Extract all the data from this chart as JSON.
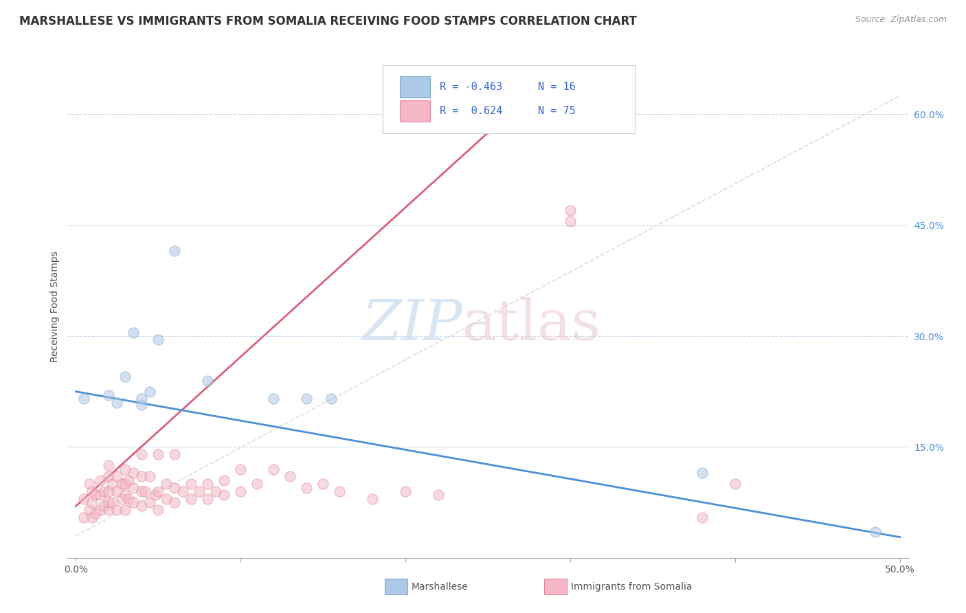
{
  "title": "MARSHALLESE VS IMMIGRANTS FROM SOMALIA RECEIVING FOOD STAMPS CORRELATION CHART",
  "source_text": "Source: ZipAtlas.com",
  "ylabel": "Receiving Food Stamps",
  "x_ticks": [
    0.0,
    0.1,
    0.2,
    0.3,
    0.4,
    0.5
  ],
  "x_tick_labels": [
    "0.0%",
    "",
    "",
    "",
    "",
    "50.0%"
  ],
  "y_ticks_right": [
    0.15,
    0.3,
    0.45,
    0.6
  ],
  "y_tick_labels_right": [
    "15.0%",
    "30.0%",
    "45.0%",
    "60.0%"
  ],
  "xlim": [
    -0.005,
    0.505
  ],
  "ylim": [
    0.0,
    0.68
  ],
  "blue_fill_color": "#aec8e8",
  "blue_edge_color": "#7aaad0",
  "pink_fill_color": "#f4b8c8",
  "pink_edge_color": "#e08898",
  "blue_line_color": "#4a90d9",
  "pink_line_color": "#d9607a",
  "grey_line_color": "#cccccc",
  "legend_r_blue": "R = -0.463",
  "legend_n_blue": "N = 16",
  "legend_r_pink": "R =  0.624",
  "legend_n_pink": "N = 75",
  "legend_label_blue": "Marshallese",
  "legend_label_pink": "Immigrants from Somalia",
  "blue_scatter_x": [
    0.005,
    0.02,
    0.025,
    0.03,
    0.035,
    0.04,
    0.04,
    0.045,
    0.05,
    0.06,
    0.08,
    0.12,
    0.14,
    0.155,
    0.38,
    0.485
  ],
  "blue_scatter_y": [
    0.215,
    0.22,
    0.21,
    0.245,
    0.305,
    0.207,
    0.215,
    0.225,
    0.295,
    0.415,
    0.24,
    0.215,
    0.215,
    0.215,
    0.115,
    0.035
  ],
  "pink_scatter_x": [
    0.005,
    0.005,
    0.008,
    0.008,
    0.01,
    0.01,
    0.01,
    0.012,
    0.012,
    0.015,
    0.015,
    0.015,
    0.017,
    0.017,
    0.02,
    0.02,
    0.02,
    0.02,
    0.02,
    0.022,
    0.022,
    0.025,
    0.025,
    0.025,
    0.028,
    0.028,
    0.03,
    0.03,
    0.03,
    0.03,
    0.032,
    0.032,
    0.035,
    0.035,
    0.035,
    0.04,
    0.04,
    0.04,
    0.04,
    0.042,
    0.045,
    0.045,
    0.048,
    0.05,
    0.05,
    0.05,
    0.055,
    0.055,
    0.06,
    0.06,
    0.06,
    0.065,
    0.07,
    0.07,
    0.075,
    0.08,
    0.08,
    0.085,
    0.09,
    0.09,
    0.1,
    0.1,
    0.11,
    0.12,
    0.13,
    0.14,
    0.15,
    0.16,
    0.18,
    0.2,
    0.22,
    0.3,
    0.38,
    0.4,
    0.3
  ],
  "pink_scatter_y": [
    0.055,
    0.08,
    0.065,
    0.1,
    0.055,
    0.075,
    0.09,
    0.06,
    0.085,
    0.065,
    0.085,
    0.105,
    0.07,
    0.09,
    0.065,
    0.075,
    0.09,
    0.11,
    0.125,
    0.075,
    0.1,
    0.065,
    0.09,
    0.11,
    0.08,
    0.1,
    0.065,
    0.085,
    0.1,
    0.12,
    0.08,
    0.105,
    0.075,
    0.095,
    0.115,
    0.07,
    0.09,
    0.11,
    0.14,
    0.09,
    0.075,
    0.11,
    0.085,
    0.065,
    0.09,
    0.14,
    0.08,
    0.1,
    0.075,
    0.095,
    0.14,
    0.09,
    0.08,
    0.1,
    0.09,
    0.08,
    0.1,
    0.09,
    0.085,
    0.105,
    0.09,
    0.12,
    0.1,
    0.12,
    0.11,
    0.095,
    0.1,
    0.09,
    0.08,
    0.09,
    0.085,
    0.455,
    0.055,
    0.1,
    0.47
  ],
  "blue_trend_x": [
    0.0,
    0.5
  ],
  "blue_trend_y": [
    0.225,
    0.028
  ],
  "pink_trend_x": [
    0.0,
    0.25
  ],
  "pink_trend_y": [
    0.07,
    0.575
  ],
  "grey_trend_x": [
    0.0,
    0.5
  ],
  "grey_trend_y": [
    0.03,
    0.625
  ],
  "background_color": "#ffffff",
  "grid_color": "#c8d8ea",
  "title_fontsize": 12,
  "axis_label_fontsize": 10,
  "tick_fontsize": 10,
  "scatter_size": 120,
  "scatter_alpha": 0.55
}
